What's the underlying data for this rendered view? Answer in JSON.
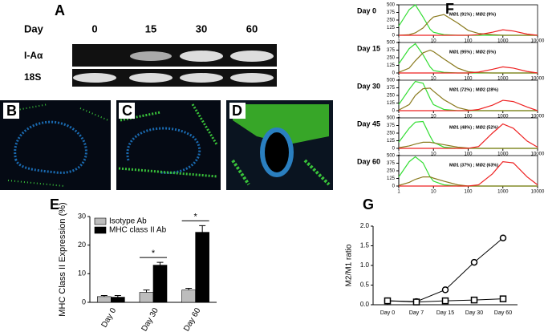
{
  "panel_labels": [
    "A",
    "B",
    "C",
    "D",
    "E",
    "F",
    "G"
  ],
  "gel": {
    "header": [
      "Day",
      "0",
      "15",
      "30",
      "60"
    ],
    "rows": [
      "I-Aα",
      "18S"
    ]
  },
  "chart_data": [
    {
      "type": "bar",
      "ylabel": "MHC Class II Expression (%)",
      "categories": [
        "Day 0",
        "Day 30",
        "Day 60"
      ],
      "series": [
        {
          "name": "Isotype Ab",
          "color": "#bdbdbd",
          "values": [
            2,
            3.5,
            4.3
          ],
          "errors": [
            0.4,
            0.8,
            0.6
          ]
        },
        {
          "name": "MHC class II Ab",
          "color": "#000000",
          "values": [
            1.8,
            13,
            24.5
          ],
          "errors": [
            0.6,
            1,
            2.3
          ]
        }
      ],
      "ylim": [
        0,
        30
      ],
      "yticks": [
        0,
        10,
        20,
        30
      ],
      "annotations": [
        "*",
        "*"
      ],
      "legend": "top-left"
    },
    {
      "type": "line",
      "title": "Day 0",
      "annotation": "MØ1 (91%) ; MØ2 (9%)",
      "xscale": "log",
      "x": [
        1,
        2,
        3,
        5,
        8,
        10,
        20,
        50,
        100,
        200,
        500,
        1000,
        2000,
        5000,
        10000
      ],
      "series": [
        {
          "color": "#33dd33",
          "values": [
            150,
            420,
            500,
            300,
            100,
            50,
            10,
            0,
            0,
            0,
            0,
            0,
            0,
            0,
            0
          ]
        },
        {
          "color": "#8a7a1e",
          "values": [
            0,
            10,
            40,
            120,
            250,
            300,
            340,
            200,
            80,
            30,
            10,
            0,
            0,
            0,
            0
          ]
        },
        {
          "color": "#ee2222",
          "values": [
            0,
            0,
            0,
            0,
            0,
            0,
            0,
            0,
            0,
            10,
            50,
            90,
            70,
            20,
            0
          ]
        }
      ],
      "xlim": [
        1,
        10000
      ],
      "xticks": [
        1,
        10,
        100,
        1000,
        10000
      ],
      "ylim": [
        0,
        500
      ],
      "yticks": [
        0,
        125,
        250,
        375,
        500
      ]
    },
    {
      "type": "line",
      "title": "Day 15",
      "annotation": "MØ1 (95%) ; MØ2 (5%)",
      "xscale": "log",
      "x": [
        1,
        2,
        3,
        5,
        8,
        10,
        20,
        50,
        100,
        200,
        500,
        1000,
        2000,
        5000,
        10000
      ],
      "series": [
        {
          "color": "#33dd33",
          "values": [
            150,
            400,
            480,
            300,
            100,
            40,
            10,
            0,
            0,
            0,
            0,
            0,
            0,
            0,
            0
          ]
        },
        {
          "color": "#8a7a1e",
          "values": [
            10,
            80,
            200,
            330,
            375,
            350,
            230,
            80,
            20,
            5,
            0,
            0,
            0,
            0,
            0
          ]
        },
        {
          "color": "#ee2222",
          "values": [
            0,
            0,
            0,
            0,
            0,
            0,
            0,
            0,
            0,
            15,
            60,
            100,
            80,
            25,
            0
          ]
        }
      ],
      "xlim": [
        1,
        10000
      ],
      "xticks": [
        1,
        10,
        100,
        1000,
        10000
      ],
      "ylim": [
        0,
        500
      ],
      "yticks": [
        0,
        125,
        250,
        375,
        500
      ]
    },
    {
      "type": "line",
      "title": "Day 30",
      "annotation": "MØ1 (72%) ; MØ2 (28%)",
      "xscale": "log",
      "x": [
        1,
        2,
        3,
        5,
        8,
        10,
        20,
        50,
        100,
        200,
        500,
        1000,
        2000,
        5000,
        10000
      ],
      "series": [
        {
          "color": "#33dd33",
          "values": [
            100,
            350,
            480,
            450,
            200,
            100,
            20,
            0,
            0,
            0,
            0,
            0,
            0,
            0,
            0
          ]
        },
        {
          "color": "#8a7a1e",
          "values": [
            10,
            100,
            250,
            360,
            370,
            320,
            180,
            50,
            10,
            0,
            0,
            0,
            0,
            0,
            0
          ]
        },
        {
          "color": "#ee2222",
          "values": [
            0,
            0,
            0,
            0,
            0,
            0,
            0,
            0,
            0,
            20,
            90,
            170,
            150,
            60,
            0
          ]
        }
      ],
      "xlim": [
        1,
        10000
      ],
      "xticks": [
        1,
        10,
        100,
        1000,
        10000
      ],
      "ylim": [
        0,
        500
      ],
      "yticks": [
        0,
        125,
        250,
        375,
        500
      ]
    },
    {
      "type": "line",
      "title": "Day 45",
      "annotation": "MØ1 (48%) ; MØ2 (52%)",
      "xscale": "log",
      "x": [
        1,
        2,
        3,
        5,
        8,
        10,
        20,
        50,
        100,
        200,
        500,
        1000,
        2000,
        5000,
        10000
      ],
      "series": [
        {
          "color": "#33dd33",
          "values": [
            100,
            330,
            430,
            440,
            200,
            100,
            20,
            0,
            0,
            0,
            0,
            0,
            0,
            0,
            0
          ]
        },
        {
          "color": "#8a7a1e",
          "values": [
            10,
            40,
            70,
            100,
            100,
            90,
            60,
            20,
            5,
            0,
            0,
            0,
            0,
            0,
            0
          ]
        },
        {
          "color": "#ee2222",
          "values": [
            0,
            0,
            0,
            0,
            0,
            0,
            0,
            0,
            0,
            30,
            250,
            400,
            330,
            120,
            20
          ]
        }
      ],
      "xlim": [
        1,
        10000
      ],
      "xticks": [
        1,
        10,
        100,
        1000,
        10000
      ],
      "ylim": [
        0,
        500
      ],
      "yticks": [
        0,
        125,
        250,
        375,
        500
      ]
    },
    {
      "type": "line",
      "title": "Day 60",
      "annotation": "MØ1 (37%) ; MØ2 (63%)",
      "xscale": "log",
      "x": [
        1,
        2,
        3,
        5,
        8,
        10,
        20,
        50,
        100,
        200,
        500,
        1000,
        2000,
        5000,
        10000
      ],
      "series": [
        {
          "color": "#33dd33",
          "values": [
            150,
            400,
            480,
            380,
            150,
            80,
            20,
            0,
            0,
            0,
            0,
            0,
            0,
            0,
            0
          ]
        },
        {
          "color": "#8a7a1e",
          "values": [
            10,
            60,
            110,
            150,
            150,
            130,
            80,
            20,
            0,
            0,
            0,
            0,
            0,
            0,
            0
          ]
        },
        {
          "color": "#ee2222",
          "values": [
            0,
            0,
            0,
            0,
            0,
            0,
            0,
            0,
            0,
            20,
            200,
            400,
            380,
            150,
            20
          ]
        }
      ],
      "xlim": [
        1,
        10000
      ],
      "xticks": [
        1,
        10,
        100,
        1000,
        10000
      ],
      "ylim": [
        0,
        500
      ],
      "yticks": [
        0,
        125,
        250,
        375,
        500
      ]
    },
    {
      "type": "line",
      "ylabel": "M2/M1 ratio",
      "categories": [
        "Day 0",
        "Day 7",
        "Day 15",
        "Day 30",
        "Day 60"
      ],
      "series": [
        {
          "color": "#000000",
          "marker": "circle",
          "values": [
            0.1,
            0.08,
            0.38,
            1.08,
            1.7
          ]
        },
        {
          "color": "#000000",
          "marker": "square",
          "values": [
            0.1,
            0.07,
            0.1,
            0.12,
            0.15
          ]
        }
      ],
      "ylim": [
        0,
        2
      ],
      "yticks": [
        {
          "value": 0,
          "label": "0.0"
        },
        {
          "value": 0.5,
          "label": "0.5"
        },
        {
          "value": 1,
          "label": "1.0"
        },
        {
          "value": 1.5,
          "label": "1.5"
        },
        {
          "value": 2,
          "label": "2.0"
        }
      ]
    }
  ]
}
